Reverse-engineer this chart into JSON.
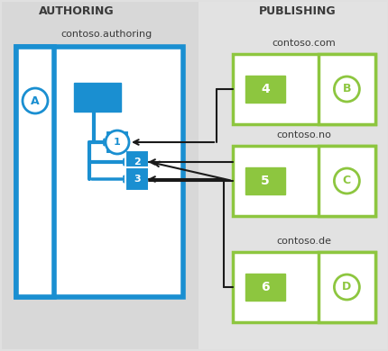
{
  "bg_color": "#e0e0e0",
  "left_panel_color": "#d8d8d8",
  "right_panel_color": "#e4e4e4",
  "blue": "#1a8fd1",
  "blue_mid": "#2196c8",
  "green": "#8dc63f",
  "green_dark": "#6aaa1e",
  "white": "#ffffff",
  "black": "#1a1a1a",
  "header_color": "#404040",
  "text_color": "#404040",
  "authoring_label": "AUTHORING",
  "publishing_label": "PUBLISHING",
  "site_label": "contoso.authoring",
  "pub_sites": [
    "contoso.com",
    "contoso.no",
    "contoso.de"
  ],
  "node_labels": [
    "1",
    "2",
    "3"
  ],
  "pub_numbers": [
    "4",
    "5",
    "6"
  ],
  "letter_labels": [
    "B",
    "C",
    "D"
  ],
  "circle_label_A": "A",
  "fig_w": 4.31,
  "fig_h": 3.9,
  "dpi": 100
}
